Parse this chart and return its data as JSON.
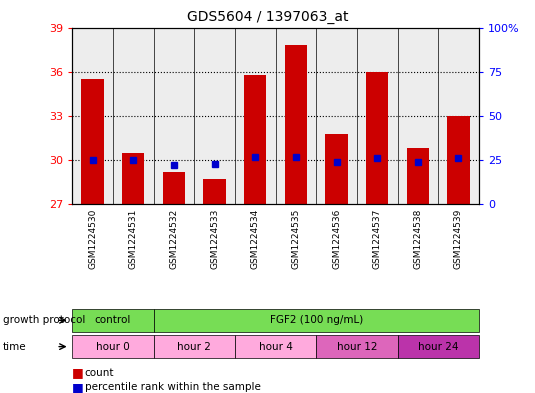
{
  "title": "GDS5604 / 1397063_at",
  "samples": [
    "GSM1224530",
    "GSM1224531",
    "GSM1224532",
    "GSM1224533",
    "GSM1224534",
    "GSM1224535",
    "GSM1224536",
    "GSM1224537",
    "GSM1224538",
    "GSM1224539"
  ],
  "counts": [
    35.5,
    30.5,
    29.2,
    28.7,
    35.8,
    37.8,
    31.8,
    36.0,
    30.8,
    33.0
  ],
  "percentiles": [
    25,
    25,
    22,
    23,
    27,
    27,
    24,
    26,
    24,
    26
  ],
  "ymin": 27,
  "ymax": 39,
  "yticks_left": [
    27,
    30,
    33,
    36,
    39
  ],
  "yticks_right": [
    0,
    25,
    50,
    75,
    100
  ],
  "bar_color": "#cc0000",
  "percentile_color": "#0000cc",
  "bg_color": "#ffffff",
  "col_bg_color": "#cccccc",
  "gp_groups": [
    {
      "label": "control",
      "start": 0,
      "end": 2,
      "color": "#77dd55"
    },
    {
      "label": "FGF2 (100 ng/mL)",
      "start": 2,
      "end": 10,
      "color": "#77dd55"
    }
  ],
  "time_groups": [
    {
      "label": "hour 0",
      "start": 0,
      "end": 2,
      "color": "#ffaadd"
    },
    {
      "label": "hour 2",
      "start": 2,
      "end": 4,
      "color": "#ffaadd"
    },
    {
      "label": "hour 4",
      "start": 4,
      "end": 6,
      "color": "#ffaadd"
    },
    {
      "label": "hour 12",
      "start": 6,
      "end": 8,
      "color": "#dd66bb"
    },
    {
      "label": "hour 24",
      "start": 8,
      "end": 10,
      "color": "#bb33aa"
    }
  ],
  "legend_count_color": "#cc0000",
  "legend_percentile_color": "#0000cc"
}
